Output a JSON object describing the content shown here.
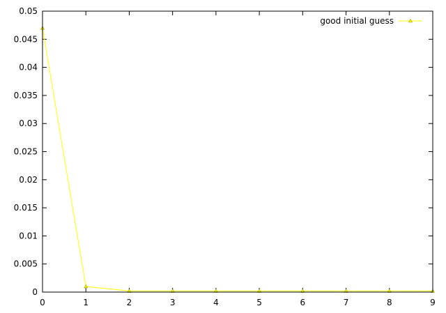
{
  "chart_data": {
    "type": "line",
    "title": "",
    "xlabel": "",
    "ylabel": "",
    "xlim": [
      0,
      9
    ],
    "ylim": [
      0,
      0.05
    ],
    "grid": false,
    "legend_position": "top-right",
    "x_ticks": [
      0,
      1,
      2,
      3,
      4,
      5,
      6,
      7,
      8,
      9
    ],
    "x_tick_labels": [
      "0",
      "1",
      "2",
      "3",
      "4",
      "5",
      "6",
      "7",
      "8",
      "9"
    ],
    "y_ticks": [
      0,
      0.005,
      0.01,
      0.015,
      0.02,
      0.025,
      0.03,
      0.035,
      0.04,
      0.045,
      0.05
    ],
    "y_tick_labels": [
      "0",
      "0.005",
      "0.01",
      "0.015",
      "0.02",
      "0.025",
      "0.03",
      "0.035",
      "0.04",
      "0.045",
      "0.05"
    ],
    "series": [
      {
        "name": "good initial guess",
        "color": "#ffff00",
        "marker": "triangle",
        "x": [
          0,
          1,
          2,
          3,
          4,
          5,
          6,
          7,
          8,
          9
        ],
        "y": [
          0.047,
          0.001,
          0.0002,
          0.0002,
          0.0002,
          0.0002,
          0.0002,
          0.0002,
          0.0002,
          0.0002
        ]
      }
    ]
  }
}
